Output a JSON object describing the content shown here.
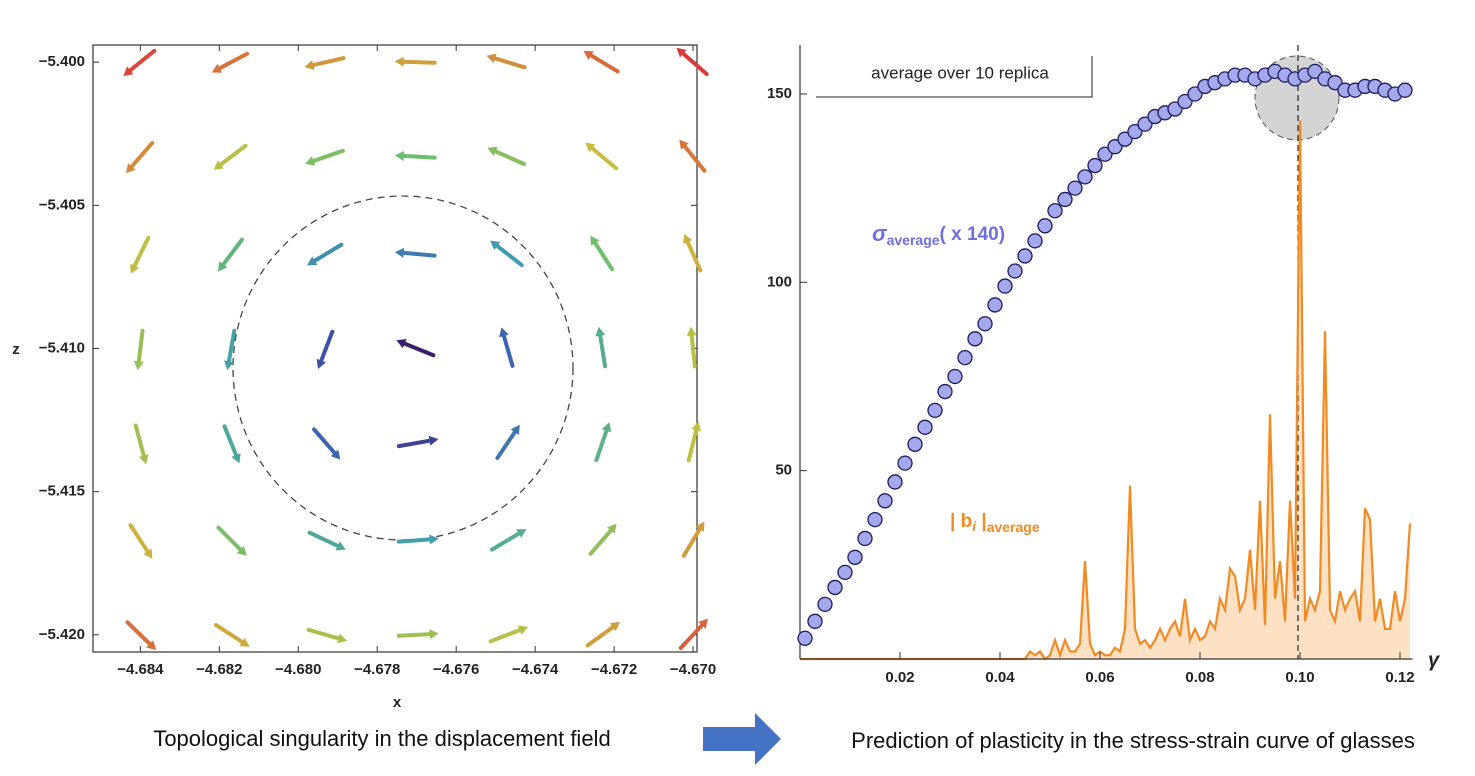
{
  "chart_data": [
    {
      "type": "quiver",
      "xlabel": "x",
      "ylabel": "z",
      "caption": "Topological singularity in the displacement field",
      "xlim": [
        -4.6852,
        -4.6699
      ],
      "ylim": [
        -5.4206,
        -5.3994
      ],
      "xticks": [
        {
          "value": -4.684,
          "label": "−4.684"
        },
        {
          "value": -4.682,
          "label": "−4.682"
        },
        {
          "value": -4.68,
          "label": "−4.680"
        },
        {
          "value": -4.678,
          "label": "−4.678"
        },
        {
          "value": -4.676,
          "label": "−4.676"
        },
        {
          "value": -4.674,
          "label": "−4.674"
        },
        {
          "value": -4.672,
          "label": "−4.672"
        },
        {
          "value": -4.67,
          "label": "−4.670"
        }
      ],
      "yticks": [
        {
          "value": -5.4,
          "label": "−5.400"
        },
        {
          "value": -5.405,
          "label": "−5.405"
        },
        {
          "value": -5.41,
          "label": "−5.410"
        },
        {
          "value": -5.415,
          "label": "−5.415"
        },
        {
          "value": -5.42,
          "label": "−5.420"
        }
      ],
      "x": [
        -4.684,
        -4.6817,
        -4.6793,
        -4.677,
        -4.6747,
        -4.6723,
        -4.67
      ],
      "z": [
        -5.4,
        -5.4033,
        -5.4067,
        -5.41,
        -5.4133,
        -5.4167,
        -5.42
      ],
      "angles": [
        [
          -141,
          -152,
          -167,
          178,
          163,
          149,
          139
        ],
        [
          -131,
          -143,
          -161,
          177,
          156,
          140,
          129
        ],
        [
          -116,
          -127,
          -149,
          175,
          142,
          123,
          114
        ],
        [
          -97,
          -100,
          -111,
          158,
          106,
          99,
          96
        ],
        [
          -75,
          -68,
          -49,
          10,
          56,
          71,
          76
        ],
        [
          -57,
          -45,
          -25,
          4,
          31,
          49,
          59
        ],
        [
          -44,
          -33,
          -16,
          3,
          21,
          36,
          47
        ]
      ],
      "magnitudes": [
        [
          0.671,
          0.592,
          0.539,
          0.524,
          0.549,
          0.611,
          0.695
        ],
        [
          0.557,
          0.459,
          0.388,
          0.368,
          0.402,
          0.483,
          0.586
        ],
        [
          0.467,
          0.343,
          0.241,
          0.206,
          0.262,
          0.374,
          0.5
        ],
        [
          0.422,
          0.279,
          0.134,
          0.052,
          0.17,
          0.317,
          0.459
        ],
        [
          0.433,
          0.297,
          0.167,
          0.112,
          0.197,
          0.332,
          0.469
        ],
        [
          0.499,
          0.386,
          0.298,
          0.272,
          0.316,
          0.414,
          0.53
        ],
        [
          0.6,
          0.51,
          0.447,
          0.429,
          0.459,
          0.531,
          0.626
        ]
      ],
      "colorscale": [
        "#3b1f6e",
        "#3d5fb0",
        "#3f9fb0",
        "#6fbf6a",
        "#c9bf3c",
        "#d8763a",
        "#d83b3b"
      ]
    },
    {
      "type": "combo",
      "xlabel": "γ",
      "caption": "Prediction of plasticity in the stress-strain curve of glasses",
      "legend_title": "average over 10 replica",
      "xlim": [
        0,
        0.1225
      ],
      "ylim": [
        0,
        163
      ],
      "xticks": [
        0.02,
        0.04,
        0.06,
        0.08,
        {
          "value": 0.1,
          "label": "0.10"
        },
        0.12
      ],
      "yticks": [
        50,
        100,
        150
      ],
      "series": [
        {
          "type": "scatter",
          "label_parts": [
            "σ",
            "average",
            "( x 140)"
          ],
          "color": "#a3a9ec",
          "edge_color": "#1c1c5c",
          "x": [
            0.001,
            0.003,
            0.005,
            0.007,
            0.009,
            0.011,
            0.013,
            0.015,
            0.017,
            0.019,
            0.021,
            0.023,
            0.025,
            0.027,
            0.029,
            0.031,
            0.033,
            0.035,
            0.037,
            0.039,
            0.041,
            0.043,
            0.045,
            0.047,
            0.049,
            0.051,
            0.053,
            0.055,
            0.057,
            0.059,
            0.061,
            0.063,
            0.065,
            0.067,
            0.069,
            0.071,
            0.073,
            0.075,
            0.077,
            0.079,
            0.081,
            0.083,
            0.085,
            0.087,
            0.089,
            0.091,
            0.093,
            0.095,
            0.097,
            0.099,
            0.101,
            0.103,
            0.105,
            0.107,
            0.109,
            0.111,
            0.113,
            0.115,
            0.117,
            0.119,
            0.121
          ],
          "values": [
            5.5,
            10,
            14.5,
            19,
            23,
            27,
            32,
            37,
            42,
            47,
            52,
            57,
            61.5,
            66,
            71,
            75,
            80,
            85,
            89,
            94,
            99,
            103,
            107,
            111,
            115,
            119,
            122,
            125,
            128,
            131,
            134,
            136,
            138,
            140,
            142,
            144,
            145,
            146,
            148,
            150,
            152,
            153,
            154,
            155,
            155,
            154,
            155,
            156,
            155,
            154,
            155,
            156,
            154,
            153,
            151,
            151,
            152,
            152,
            151,
            150,
            151
          ]
        },
        {
          "type": "area",
          "label_parts": [
            "| b",
            "i",
            " |",
            "average"
          ],
          "color": "#f28a22",
          "fill": "#fcd9b6",
          "x": [
            0,
            0.045,
            0.046,
            0.047,
            0.048,
            0.049,
            0.05,
            0.051,
            0.052,
            0.053,
            0.054,
            0.055,
            0.056,
            0.057,
            0.058,
            0.059,
            0.06,
            0.061,
            0.062,
            0.063,
            0.064,
            0.065,
            0.066,
            0.067,
            0.068,
            0.069,
            0.07,
            0.071,
            0.072,
            0.073,
            0.074,
            0.075,
            0.076,
            0.077,
            0.078,
            0.079,
            0.08,
            0.081,
            0.082,
            0.083,
            0.084,
            0.085,
            0.086,
            0.087,
            0.088,
            0.089,
            0.09,
            0.091,
            0.092,
            0.093,
            0.094,
            0.095,
            0.096,
            0.097,
            0.098,
            0.099,
            0.1,
            0.101,
            0.102,
            0.103,
            0.104,
            0.105,
            0.106,
            0.107,
            0.108,
            0.109,
            0.11,
            0.111,
            0.112,
            0.113,
            0.114,
            0.115,
            0.116,
            0.117,
            0.118,
            0.119,
            0.12,
            0.121,
            0.122
          ],
          "values": [
            0,
            0,
            2,
            1,
            2,
            0,
            1,
            5,
            1,
            5,
            2,
            2,
            4,
            26,
            4,
            1,
            2,
            1,
            1,
            3,
            2,
            8,
            46,
            8,
            4,
            5,
            3,
            5,
            8,
            5,
            8,
            10,
            6,
            16,
            5,
            8,
            5,
            6,
            10,
            8,
            16,
            13,
            24,
            22,
            13,
            16,
            29,
            13,
            42,
            9,
            65,
            16,
            26,
            10,
            42,
            16,
            143,
            10,
            16,
            13,
            18,
            87,
            13,
            10,
            18,
            13,
            16,
            18,
            10,
            40,
            37,
            10,
            16,
            8,
            8,
            18,
            10,
            16,
            36
          ]
        }
      ]
    }
  ]
}
